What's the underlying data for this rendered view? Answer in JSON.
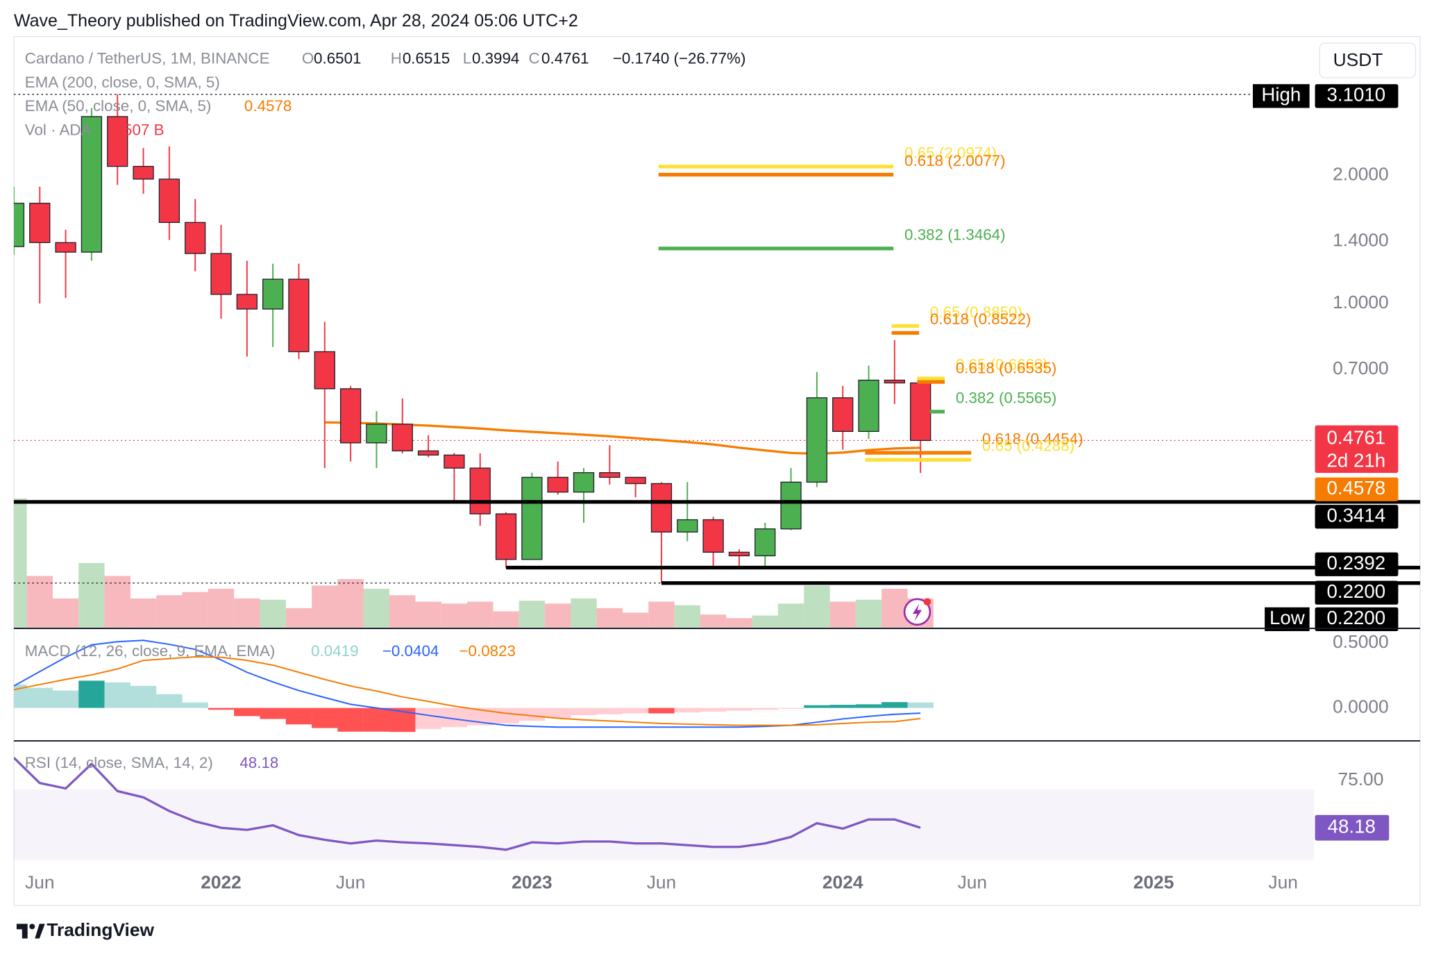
{
  "published": "Wave_Theory published on TradingView.com, Apr 28, 2024 05:06 UTC+2",
  "currency_button": "USDT",
  "footer": "TradingView",
  "legend": {
    "symbol": "Cardano / TetherUS, 1M, BINANCE",
    "ohlc": [
      {
        "key": "O",
        "text": "0.6501"
      },
      {
        "key": "H",
        "text": "0.6515"
      },
      {
        "key": "L",
        "text": "0.3994"
      },
      {
        "key": "C",
        "text": "0.4761"
      }
    ],
    "change": "−0.1740 (−26.77%)",
    "ema200": "EMA (200, close, 0, SMA, 5)",
    "ema50": "EMA (50, close, 0, SMA, 5)",
    "ema50_value": "0.4578",
    "volume": "Vol · ADA",
    "volume_value": "507 B"
  },
  "chart_data": {
    "type": "candlestick",
    "categories": [
      null,
      "Jun",
      null,
      null,
      null,
      null,
      null,
      null,
      "2022",
      null,
      null,
      null,
      null,
      "Jun",
      null,
      null,
      null,
      null,
      null,
      null,
      "2023",
      null,
      null,
      null,
      null,
      "Jun",
      null,
      null,
      null,
      null,
      null,
      null,
      "2024",
      null,
      null,
      null,
      null,
      "Jun",
      null,
      null,
      null,
      null,
      null,
      null,
      "2025",
      null,
      null,
      null,
      null,
      "Jun"
    ],
    "open": [
      1.36,
      1.72,
      1.39,
      1.32,
      2.75,
      2.1,
      1.96,
      1.55,
      1.31,
      1.05,
      0.97,
      1.14,
      0.77,
      0.63,
      0.47,
      0.52,
      0.45,
      0.44,
      0.41,
      0.32,
      0.25,
      0.39,
      0.36,
      0.4,
      0.39,
      0.377,
      0.29,
      0.31,
      0.26,
      0.255,
      0.295,
      0.38,
      0.6,
      0.5,
      0.66,
      0.6501,
      null,
      null,
      null,
      null,
      null,
      null,
      null,
      null,
      null,
      null,
      null,
      null,
      null,
      null
    ],
    "high": [
      1.88,
      1.88,
      1.49,
      2.88,
      3.101,
      2.32,
      2.34,
      1.76,
      1.53,
      1.26,
      1.24,
      1.24,
      0.905,
      0.64,
      0.558,
      0.598,
      0.49,
      0.445,
      0.444,
      0.323,
      0.4,
      0.425,
      0.41,
      0.464,
      0.39,
      0.38,
      0.38,
      0.315,
      0.264,
      0.305,
      0.41,
      0.69,
      0.64,
      0.714,
      0.82,
      0.6515,
      null,
      null,
      null,
      null,
      null,
      null,
      null,
      null,
      null,
      null,
      null,
      null,
      null,
      null
    ],
    "low": [
      1.3,
      1.0,
      1.03,
      1.26,
      1.9,
      1.81,
      1.41,
      1.19,
      0.92,
      0.75,
      0.79,
      0.74,
      0.41,
      0.425,
      0.41,
      0.444,
      0.435,
      0.34,
      0.3,
      0.2392,
      0.25,
      0.355,
      0.305,
      0.375,
      0.35,
      0.22,
      0.276,
      0.24,
      0.24,
      0.24,
      0.293,
      0.37,
      0.453,
      0.48,
      0.58,
      0.3994,
      null,
      null,
      null,
      null,
      null,
      null,
      null,
      null,
      null,
      null,
      null,
      null,
      null,
      null
    ],
    "close": [
      1.72,
      1.39,
      1.32,
      2.75,
      2.1,
      1.96,
      1.55,
      1.31,
      1.05,
      0.97,
      1.14,
      0.77,
      0.63,
      0.47,
      0.52,
      0.45,
      0.44,
      0.41,
      0.32,
      0.25,
      0.39,
      0.36,
      0.4,
      0.39,
      0.377,
      0.29,
      0.31,
      0.26,
      0.255,
      0.295,
      0.38,
      0.6,
      0.5,
      0.66,
      0.6501,
      0.4761,
      null,
      null,
      null,
      null,
      null,
      null,
      null,
      null,
      null,
      null,
      null,
      null,
      null,
      null
    ],
    "up_color": "#4caf50",
    "down_color": "#f23645",
    "log_scale": true,
    "grid": false,
    "ylim": [
      0.173,
      4.24
    ],
    "yticks": [
      {
        "value": 0.7,
        "label": "0.7000"
      },
      {
        "value": 1.0,
        "label": "1.0000"
      },
      {
        "value": 1.4,
        "label": "1.4000"
      },
      {
        "value": 2.0,
        "label": "2.0000"
      }
    ],
    "ema": {
      "name": "EMA 50",
      "color": "#f57c00",
      "values": [
        null,
        null,
        null,
        null,
        null,
        null,
        null,
        null,
        null,
        null,
        null,
        null,
        0.525,
        0.524,
        0.522,
        0.519,
        0.516,
        0.512,
        0.508,
        0.503,
        0.499,
        0.495,
        0.491,
        0.487,
        0.482,
        0.477,
        0.472,
        0.466,
        0.458,
        0.451,
        0.445,
        0.443,
        0.446,
        0.452,
        0.456,
        0.4578,
        null,
        null,
        null,
        null,
        null,
        null,
        null,
        null,
        null,
        null,
        null,
        null,
        null,
        null
      ]
    },
    "volume": {
      "up_color": "#bfe0c0",
      "down_color": "#f8b9be",
      "ylim": [
        0,
        40
      ],
      "values": [
        40,
        16,
        9,
        20,
        16,
        9,
        10,
        11,
        12,
        9,
        8.6,
        6,
        13,
        15,
        12,
        10,
        8,
        7.4,
        8,
        5,
        8.3,
        7.4,
        9,
        6,
        4.6,
        8,
        6.9,
        4,
        2.9,
        3.7,
        7.4,
        13,
        8,
        8.6,
        12,
        9,
        null,
        null,
        null,
        null,
        null,
        null,
        null,
        null,
        null,
        null,
        null,
        null,
        null,
        null
      ]
    },
    "fib_levels": [
      {
        "label": "0.65 (2.0974)",
        "value": 2.0974,
        "color": "#fbe03a"
      },
      {
        "label": "0.618 (2.0077)",
        "value": 2.0077,
        "color": "#f57c00"
      },
      {
        "label": "0.382 (1.3464)",
        "value": 1.3464,
        "color": "#4caf50"
      },
      {
        "label": "0.65 (0.8850)",
        "value": 0.885,
        "color": "#fbe03a"
      },
      {
        "label": "0.618 (0.8522)",
        "value": 0.8522,
        "color": "#f57c00"
      },
      {
        "label": "0.65 (0.6660)",
        "value": 0.666,
        "color": "#fbe03a"
      },
      {
        "label": "0.618 (0.6535)",
        "value": 0.6535,
        "color": "#f57c00"
      },
      {
        "label": "0.382 (0.5565)",
        "value": 0.5565,
        "color": "#4caf50"
      },
      {
        "label": "0.618 (0.4454)",
        "value": 0.4454,
        "color": "#f57c00"
      },
      {
        "label": "0.65 (0.4288)",
        "value": 0.4288,
        "color": "#fbe03a"
      }
    ],
    "levels": [
      0.3414,
      0.2392,
      0.22
    ],
    "high_line": 3.101,
    "low_line": 0.22,
    "last_price": 0.4761,
    "badges": [
      {
        "tag": "High",
        "value": 3.101,
        "label": "3.1010",
        "color": "#000000"
      },
      {
        "value": 0.4761,
        "label": "0.4761",
        "sub": "2d 21h",
        "color": "#f23645"
      },
      {
        "value": 0.4578,
        "label": "0.4578",
        "color": "#f57c00"
      },
      {
        "value": 0.3414,
        "label": "0.3414",
        "color": "#000000"
      },
      {
        "value": 0.2392,
        "label": "0.2392",
        "color": "#000000"
      },
      {
        "value": 0.22,
        "label": "0.2200",
        "color": "#000000"
      },
      {
        "tag": "Low",
        "value": 0.22,
        "label": "0.2200",
        "color": "#000000"
      }
    ],
    "macd": {
      "title": "MACD (12, 26, close, 9, EMA, EMA)",
      "values_text": [
        "0.0419",
        "−0.0404",
        "−0.0823"
      ],
      "ylim": [
        -0.254,
        0.606
      ],
      "yticks": [
        {
          "value": 0.5,
          "label": "0.5000"
        },
        {
          "value": 0,
          "label": "0.0000"
        }
      ],
      "hist_colors": {
        "up_rising": "#26a69a",
        "up_falling": "#b2dfdb",
        "down_falling": "#ff5252",
        "down_rising": "#ffcdd2"
      },
      "histogram": [
        0.18,
        0.155,
        0.134,
        0.21,
        0.197,
        0.17,
        0.106,
        0.042,
        -0.014,
        -0.063,
        -0.085,
        -0.127,
        -0.155,
        -0.183,
        -0.183,
        -0.185,
        -0.162,
        -0.148,
        -0.134,
        -0.12,
        -0.099,
        -0.077,
        -0.056,
        -0.049,
        -0.042,
        -0.042,
        -0.035,
        -0.028,
        -0.021,
        -0.014,
        -0.007,
        0.021,
        0.024,
        0.028,
        0.045,
        0.0419,
        null,
        null,
        null,
        null,
        null,
        null,
        null,
        null,
        null,
        null,
        null,
        null,
        null,
        null
      ],
      "series": [
        {
          "name": "MACD",
          "color": "#2962ff",
          "values": [
            0.169,
            0.28,
            0.39,
            0.486,
            0.51,
            0.521,
            0.49,
            0.451,
            0.37,
            0.275,
            0.2,
            0.134,
            0.08,
            0.028,
            0,
            -0.028,
            -0.057,
            -0.085,
            -0.11,
            -0.134,
            -0.142,
            -0.148,
            -0.148,
            -0.148,
            -0.148,
            -0.148,
            -0.148,
            -0.148,
            -0.148,
            -0.142,
            -0.134,
            -0.11,
            -0.085,
            -0.065,
            -0.049,
            -0.0404,
            null,
            null,
            null,
            null,
            null,
            null,
            null,
            null,
            null,
            null,
            null,
            null,
            null,
            null
          ]
        },
        {
          "name": "Signal",
          "color": "#f57c00",
          "values": [
            0.141,
            0.18,
            0.22,
            0.254,
            0.3,
            0.366,
            0.38,
            0.394,
            0.39,
            0.366,
            0.33,
            0.275,
            0.22,
            0.169,
            0.13,
            0.085,
            0.05,
            0.014,
            -0.015,
            -0.042,
            -0.06,
            -0.08,
            -0.092,
            -0.1,
            -0.11,
            -0.12,
            -0.125,
            -0.13,
            -0.134,
            -0.134,
            -0.134,
            -0.13,
            -0.12,
            -0.11,
            -0.106,
            -0.0823,
            null,
            null,
            null,
            null,
            null,
            null,
            null,
            null,
            null,
            null,
            null,
            null,
            null,
            null
          ]
        }
      ]
    },
    "rsi": {
      "title": "RSI (14, close, SMA, 14, 2)",
      "value_text": "48.18",
      "color": "#7e57c2",
      "ylim": [
        27.4,
        96.5
      ],
      "yticks": [
        {
          "value": 75,
          "label": "75.00"
        }
      ],
      "bands": [
        30,
        70
      ],
      "values": [
        88,
        73.6,
        70.5,
        84.5,
        69,
        65.5,
        57.7,
        51.8,
        48.2,
        47,
        49.6,
        44,
        41.4,
        39.3,
        40.9,
        39.9,
        39.3,
        38.3,
        37.3,
        35.7,
        39.9,
        39.3,
        40.4,
        40.4,
        39.3,
        39.3,
        38.3,
        37.3,
        37.3,
        39.3,
        43,
        50.8,
        47.7,
        52.9,
        52.9,
        48.18,
        null,
        null,
        null,
        null,
        null,
        null,
        null,
        null,
        null,
        null,
        null,
        null,
        null,
        null
      ]
    }
  }
}
